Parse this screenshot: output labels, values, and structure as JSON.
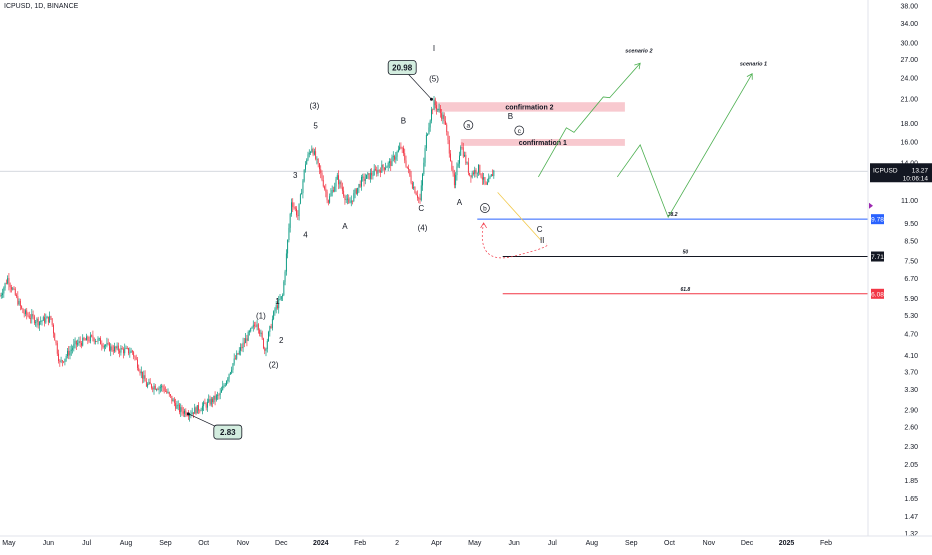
{
  "chart_data": {
    "type": "candlestick",
    "title": "ICPUSD, 1D, BINANCE",
    "symbol": "ICPUSD",
    "y_scale": "log",
    "ylim": [
      1.3,
      39.5
    ],
    "xlim": [
      "2023-04-24",
      "2025-03-06"
    ],
    "grid": false,
    "x_ticks": [
      {
        "date": "2023-05-01",
        "label": "May"
      },
      {
        "date": "2023-06-01",
        "label": "Jun"
      },
      {
        "date": "2023-07-01",
        "label": "Jul"
      },
      {
        "date": "2023-08-01",
        "label": "Aug"
      },
      {
        "date": "2023-09-01",
        "label": "Sep"
      },
      {
        "date": "2023-10-01",
        "label": "Oct"
      },
      {
        "date": "2023-11-01",
        "label": "Nov"
      },
      {
        "date": "2023-12-01",
        "label": "Dec"
      },
      {
        "date": "2024-01-01",
        "label": "2024"
      },
      {
        "date": "2024-02-01",
        "label": "Feb"
      },
      {
        "date": "2024-03-01",
        "label": "2"
      },
      {
        "date": "2024-04-01",
        "label": "Apr"
      },
      {
        "date": "2024-05-01",
        "label": "May"
      },
      {
        "date": "2024-06-01",
        "label": "Jun"
      },
      {
        "date": "2024-07-01",
        "label": "Jul"
      },
      {
        "date": "2024-08-01",
        "label": "Aug"
      },
      {
        "date": "2024-09-01",
        "label": "Sep"
      },
      {
        "date": "2024-10-01",
        "label": "Oct"
      },
      {
        "date": "2024-11-01",
        "label": "Nov"
      },
      {
        "date": "2024-12-01",
        "label": "Dec"
      },
      {
        "date": "2025-01-01",
        "label": "2025"
      },
      {
        "date": "2025-02-01",
        "label": "Feb"
      }
    ],
    "y_ticks": [
      "38.00",
      "34.00",
      "30.00",
      "27.00",
      "24.00",
      "21.00",
      "18.00",
      "16.00",
      "14.00",
      "11.00",
      "9.50",
      "8.50",
      "7.50",
      "6.70",
      "5.90",
      "5.30",
      "4.70",
      "4.10",
      "3.70",
      "3.30",
      "2.90",
      "2.60",
      "2.30",
      "2.05",
      "1.85",
      "1.65",
      "1.47",
      "1.32"
    ],
    "price_path": [
      {
        "date": "2023-04-24",
        "price": 6.0
      },
      {
        "date": "2023-04-30",
        "price": 6.7
      },
      {
        "date": "2023-05-12",
        "price": 5.4
      },
      {
        "date": "2023-05-24",
        "price": 5.1
      },
      {
        "date": "2023-06-03",
        "price": 5.2
      },
      {
        "date": "2023-06-10",
        "price": 3.9
      },
      {
        "date": "2023-06-22",
        "price": 4.4
      },
      {
        "date": "2023-07-06",
        "price": 4.6
      },
      {
        "date": "2023-07-20",
        "price": 4.3
      },
      {
        "date": "2023-08-06",
        "price": 4.2
      },
      {
        "date": "2023-08-17",
        "price": 3.4
      },
      {
        "date": "2023-08-30",
        "price": 3.35
      },
      {
        "date": "2023-09-12",
        "price": 2.9
      },
      {
        "date": "2023-09-20",
        "price": 2.85
      },
      {
        "date": "2023-10-03",
        "price": 3.0
      },
      {
        "date": "2023-10-14",
        "price": 3.2
      },
      {
        "date": "2023-10-24",
        "price": 3.9
      },
      {
        "date": "2023-11-04",
        "price": 4.6
      },
      {
        "date": "2023-11-12",
        "price": 5.1
      },
      {
        "date": "2023-11-18",
        "price": 4.25
      },
      {
        "date": "2023-11-26",
        "price": 5.5
      },
      {
        "date": "2023-12-02",
        "price": 6.0
      },
      {
        "date": "2023-12-09",
        "price": 11.0
      },
      {
        "date": "2023-12-14",
        "price": 10.0
      },
      {
        "date": "2023-12-20",
        "price": 14.0
      },
      {
        "date": "2023-12-25",
        "price": 15.5
      },
      {
        "date": "2024-01-01",
        "price": 13.0
      },
      {
        "date": "2024-01-07",
        "price": 11.0
      },
      {
        "date": "2024-01-14",
        "price": 12.7
      },
      {
        "date": "2024-01-23",
        "price": 10.7
      },
      {
        "date": "2024-02-02",
        "price": 12.5
      },
      {
        "date": "2024-02-14",
        "price": 13.3
      },
      {
        "date": "2024-02-25",
        "price": 14.0
      },
      {
        "date": "2024-03-04",
        "price": 15.5
      },
      {
        "date": "2024-03-13",
        "price": 12.2
      },
      {
        "date": "2024-03-19",
        "price": 11.0
      },
      {
        "date": "2024-03-24",
        "price": 16.5
      },
      {
        "date": "2024-03-28",
        "price": 19.5
      },
      {
        "date": "2024-03-30",
        "price": 20.5
      },
      {
        "date": "2024-04-07",
        "price": 18.5
      },
      {
        "date": "2024-04-12",
        "price": 14.5
      },
      {
        "date": "2024-04-15",
        "price": 12.0
      },
      {
        "date": "2024-04-20",
        "price": 15.8
      },
      {
        "date": "2024-04-27",
        "price": 13.0
      },
      {
        "date": "2024-05-04",
        "price": 13.5
      },
      {
        "date": "2024-05-10",
        "price": 12.0
      },
      {
        "date": "2024-05-16",
        "price": 13.27
      }
    ],
    "current_price": "13.27",
    "countdown": "10:06:14",
    "markers": [
      {
        "label": "20.98",
        "date": "2024-03-05",
        "price": 25.7,
        "target_date": "2024-03-28",
        "target_price": 21.0
      },
      {
        "label": "2.83",
        "date": "2023-10-20",
        "price": 2.52,
        "target_date": "2023-09-19",
        "target_price": 2.83
      }
    ],
    "wave_labels": [
      {
        "text": "I",
        "date": "2024-03-30",
        "price": 28.5
      },
      {
        "text": "(5)",
        "date": "2024-03-30",
        "price": 23.5
      },
      {
        "text": "(3)",
        "date": "2023-12-27",
        "price": 19.8
      },
      {
        "text": "5",
        "date": "2023-12-28",
        "price": 17.4
      },
      {
        "text": "B",
        "date": "2024-03-06",
        "price": 18.0
      },
      {
        "text": "3",
        "date": "2023-12-12",
        "price": 12.7
      },
      {
        "text": "4",
        "date": "2023-12-20",
        "price": 8.7
      },
      {
        "text": "A",
        "date": "2024-01-20",
        "price": 9.2
      },
      {
        "text": "C",
        "date": "2024-03-20",
        "price": 10.3
      },
      {
        "text": "(4)",
        "date": "2024-03-21",
        "price": 9.1
      },
      {
        "text": "A",
        "date": "2024-04-19",
        "price": 10.7
      },
      {
        "text": "1",
        "date": "2023-11-28",
        "price": 5.7
      },
      {
        "text": "(1)",
        "date": "2023-11-15",
        "price": 5.2
      },
      {
        "text": "2",
        "date": "2023-12-01",
        "price": 4.45
      },
      {
        "text": "(2)",
        "date": "2023-11-25",
        "price": 3.8
      },
      {
        "text": "B",
        "date": "2024-05-29",
        "price": 18.5
      },
      {
        "text": "C",
        "date": "2024-06-21",
        "price": 9.0
      },
      {
        "text": "II",
        "date": "2024-06-23",
        "price": 8.4
      }
    ],
    "circled_labels": [
      {
        "text": "a",
        "date": "2024-04-26",
        "price": 17.8
      },
      {
        "text": "b",
        "date": "2024-05-09",
        "price": 10.5
      },
      {
        "text": "c",
        "date": "2024-06-05",
        "price": 17.2
      }
    ],
    "zones": [
      {
        "label": "confirmation 2",
        "date_from": "2024-03-30",
        "date_to": "2024-08-27",
        "price_from": 19.4,
        "price_to": 20.6,
        "color": "#f8c9cf"
      },
      {
        "label": "confirmation 1",
        "date_from": "2024-04-20",
        "date_to": "2024-08-27",
        "price_from": 15.6,
        "price_to": 16.3,
        "color": "#f8c9cf"
      }
    ],
    "levels": [
      {
        "label": "38.2",
        "value": "9.78",
        "date_from": "2024-05-03",
        "color": "#2962ff",
        "tag_color": "#2962ff"
      },
      {
        "label": "50",
        "value": "7.71",
        "date_from": "2024-05-23",
        "color": "#131722",
        "tag_color": "#131722"
      },
      {
        "label": "61.8",
        "value": "6.08",
        "date_from": "2024-05-23",
        "color": "#f23645",
        "tag_color": "#f23645"
      }
    ],
    "scenarios": [
      {
        "label": "scenario 2",
        "color": "#4caf50",
        "path": [
          {
            "date": "2024-06-20",
            "price": 12.8
          },
          {
            "date": "2024-07-12",
            "price": 17.5
          },
          {
            "date": "2024-07-18",
            "price": 17.0
          },
          {
            "date": "2024-08-10",
            "price": 21.3
          },
          {
            "date": "2024-08-15",
            "price": 21.2
          },
          {
            "date": "2024-09-08",
            "price": 26.4
          }
        ],
        "label_at": {
          "date": "2024-09-07",
          "price": 28.3
        }
      },
      {
        "label": "scenario 1",
        "color": "#4caf50",
        "path": [
          {
            "date": "2024-08-21",
            "price": 12.8
          },
          {
            "date": "2024-09-08",
            "price": 15.7
          },
          {
            "date": "2024-09-30",
            "price": 9.9
          },
          {
            "date": "2024-12-05",
            "price": 24.7
          }
        ],
        "label_at": {
          "date": "2024-12-06",
          "price": 26.0
        }
      }
    ],
    "yellow_projection": {
      "color": "#f2c94c",
      "path": [
        {
          "date": "2024-05-19",
          "price": 11.6
        },
        {
          "date": "2024-06-22",
          "price": 8.55
        }
      ]
    },
    "red_curve": {
      "color": "#f23645",
      "from": {
        "date": "2024-05-08",
        "price": 9.55
      },
      "to": {
        "date": "2024-06-26",
        "price": 8.35
      }
    },
    "last_price_line_price": 13.27,
    "side_marker": {
      "price": 10.65,
      "color": "#9c27b0"
    }
  }
}
